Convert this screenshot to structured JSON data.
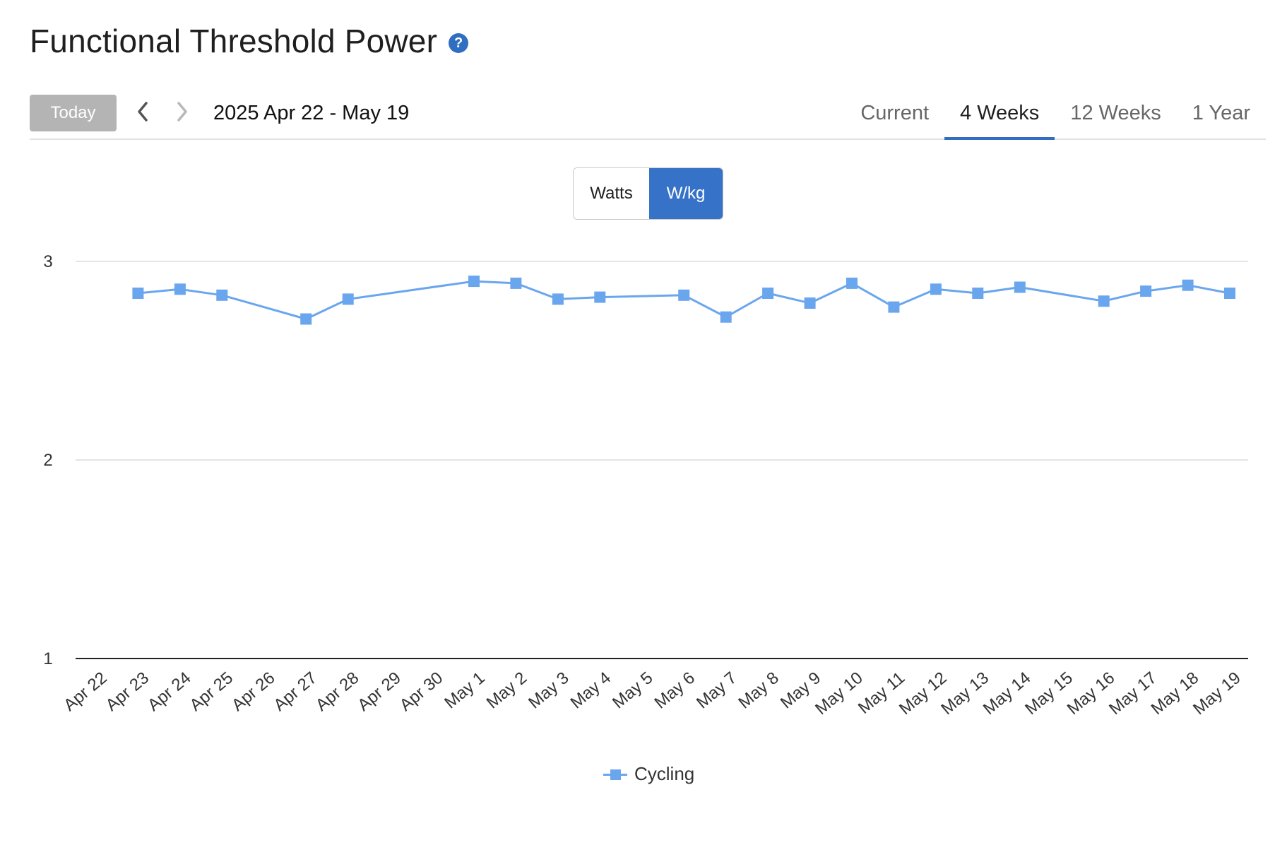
{
  "header": {
    "title": "Functional Threshold Power",
    "help_icon": "help-circle-icon"
  },
  "toolbar": {
    "today_label": "Today",
    "prev_icon": "chevron-left-icon",
    "next_icon": "chevron-right-icon",
    "date_range": "2025 Apr 22 - May 19",
    "tabs": [
      {
        "label": "Current",
        "active": false
      },
      {
        "label": "4 Weeks",
        "active": true
      },
      {
        "label": "12 Weeks",
        "active": false
      },
      {
        "label": "1 Year",
        "active": false
      }
    ]
  },
  "unit_toggle": {
    "watts_label": "Watts",
    "wkg_label": "W/kg",
    "selected": "W/kg"
  },
  "colors": {
    "accent": "#3572c8",
    "series": "#6aa6ee",
    "today_button": "#b4b4b4"
  },
  "chart_data": {
    "type": "line",
    "title": "",
    "xlabel": "",
    "ylabel": "",
    "y_ticks": [
      1,
      2,
      3
    ],
    "ylim": [
      1,
      3
    ],
    "grid": true,
    "legend_placement": "bottom-center",
    "categories": [
      "Apr 22",
      "Apr 23",
      "Apr 24",
      "Apr 25",
      "Apr 26",
      "Apr 27",
      "Apr 28",
      "Apr 29",
      "Apr 30",
      "May 1",
      "May 2",
      "May 3",
      "May 4",
      "May 5",
      "May 6",
      "May 7",
      "May 8",
      "May 9",
      "May 10",
      "May 11",
      "May 12",
      "May 13",
      "May 14",
      "May 15",
      "May 16",
      "May 17",
      "May 18",
      "May 19"
    ],
    "series": [
      {
        "name": "Cycling",
        "values": [
          null,
          2.84,
          2.86,
          2.83,
          null,
          2.71,
          2.81,
          null,
          null,
          2.9,
          2.89,
          2.81,
          2.82,
          null,
          2.83,
          2.72,
          2.84,
          2.79,
          2.89,
          2.77,
          2.86,
          2.84,
          2.87,
          null,
          2.8,
          2.85,
          2.88,
          2.84
        ]
      }
    ]
  },
  "legend": {
    "label": "Cycling"
  }
}
